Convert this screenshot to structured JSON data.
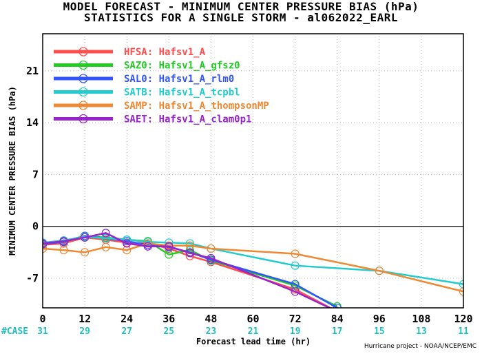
{
  "title_line1": "MODEL FORECAST - MINIMUM CENTER PRESSURE BIAS (hPa)",
  "title_line2": "STATISTICS FOR A SINGLE STORM - al062022_EARL",
  "credit": "Hurricane project - NOAA/NCEP/EMC",
  "colors": {
    "zero_line": "#000000",
    "grid": "#bbbbbb",
    "case_text": "#1fbfbf"
  },
  "chart_data": {
    "type": "line",
    "title": "MODEL FORECAST - MINIMUM CENTER PRESSURE BIAS (hPa)",
    "subtitle": "STATISTICS FOR A SINGLE STORM - al062022_EARL",
    "xlabel": "Forecast lead time (hr)",
    "ylabel": "MINIMUM CENTER PRESSURE BIAS (hPa)",
    "xlim": [
      0,
      120
    ],
    "ylim": [
      -11,
      26
    ],
    "xticks": [
      0,
      12,
      24,
      36,
      48,
      60,
      72,
      84,
      96,
      108,
      120
    ],
    "yticks": [
      -7,
      0,
      7,
      14,
      21
    ],
    "grid": true,
    "legend_position": "top-left",
    "case_label": "#CASE",
    "case_counts": [
      31,
      29,
      27,
      25,
      23,
      21,
      19,
      17,
      15,
      13,
      11
    ],
    "series": [
      {
        "name": "HFSA: Hafsv1_A",
        "color": "#ff4d4d",
        "x": [
          0,
          6,
          12,
          18,
          24,
          30,
          36,
          42,
          48,
          72,
          84
        ],
        "y": [
          -2.5,
          -2.3,
          -1.5,
          -1.8,
          -2.2,
          -2.3,
          -3.0,
          -4.0,
          -4.8,
          -8.5,
          -11.5
        ]
      },
      {
        "name": "SAZ0: Hafsv1_A_gfsz0",
        "color": "#22cc22",
        "x": [
          0,
          6,
          12,
          18,
          24,
          30,
          36,
          42,
          48,
          72,
          84
        ],
        "y": [
          -2.3,
          -2.0,
          -1.3,
          -1.5,
          -1.8,
          -2.0,
          -3.8,
          -3.2,
          -4.6,
          -8.0,
          -10.8
        ]
      },
      {
        "name": "SAL0: Hafsv1_A_rlm0",
        "color": "#3355ff",
        "x": [
          0,
          6,
          12,
          18,
          24,
          30,
          36,
          42,
          48,
          72,
          84
        ],
        "y": [
          -2.4,
          -2.1,
          -1.3,
          -1.6,
          -2.0,
          -2.5,
          -2.8,
          -3.5,
          -4.5,
          -7.8,
          -11.0
        ]
      },
      {
        "name": "SATB: Hafsv1_A_tcpbl",
        "color": "#22cccc",
        "x": [
          0,
          6,
          12,
          18,
          24,
          30,
          36,
          42,
          48,
          72,
          96,
          120
        ],
        "y": [
          -2.2,
          -1.9,
          -1.4,
          -1.6,
          -1.8,
          -2.1,
          -2.2,
          -2.3,
          -3.0,
          -5.3,
          -6.0,
          -7.8
        ]
      },
      {
        "name": "SAMP: Hafsv1_A_thompsonMP",
        "color": "#ee8833",
        "x": [
          0,
          6,
          12,
          18,
          24,
          30,
          36,
          42,
          48,
          72,
          96,
          120
        ],
        "y": [
          -3.0,
          -3.2,
          -3.5,
          -2.8,
          -3.2,
          -2.3,
          -2.6,
          -2.6,
          -3.0,
          -3.7,
          -6.0,
          -8.8
        ]
      },
      {
        "name": "SAET: Hafsv1_A_clam0p1",
        "color": "#9922cc",
        "x": [
          0,
          6,
          12,
          18,
          24,
          30,
          36,
          42,
          48,
          72,
          84
        ],
        "y": [
          -2.3,
          -2.0,
          -1.5,
          -0.9,
          -2.3,
          -2.7,
          -2.7,
          -3.6,
          -4.3,
          -8.8,
          -11.5
        ]
      }
    ]
  }
}
